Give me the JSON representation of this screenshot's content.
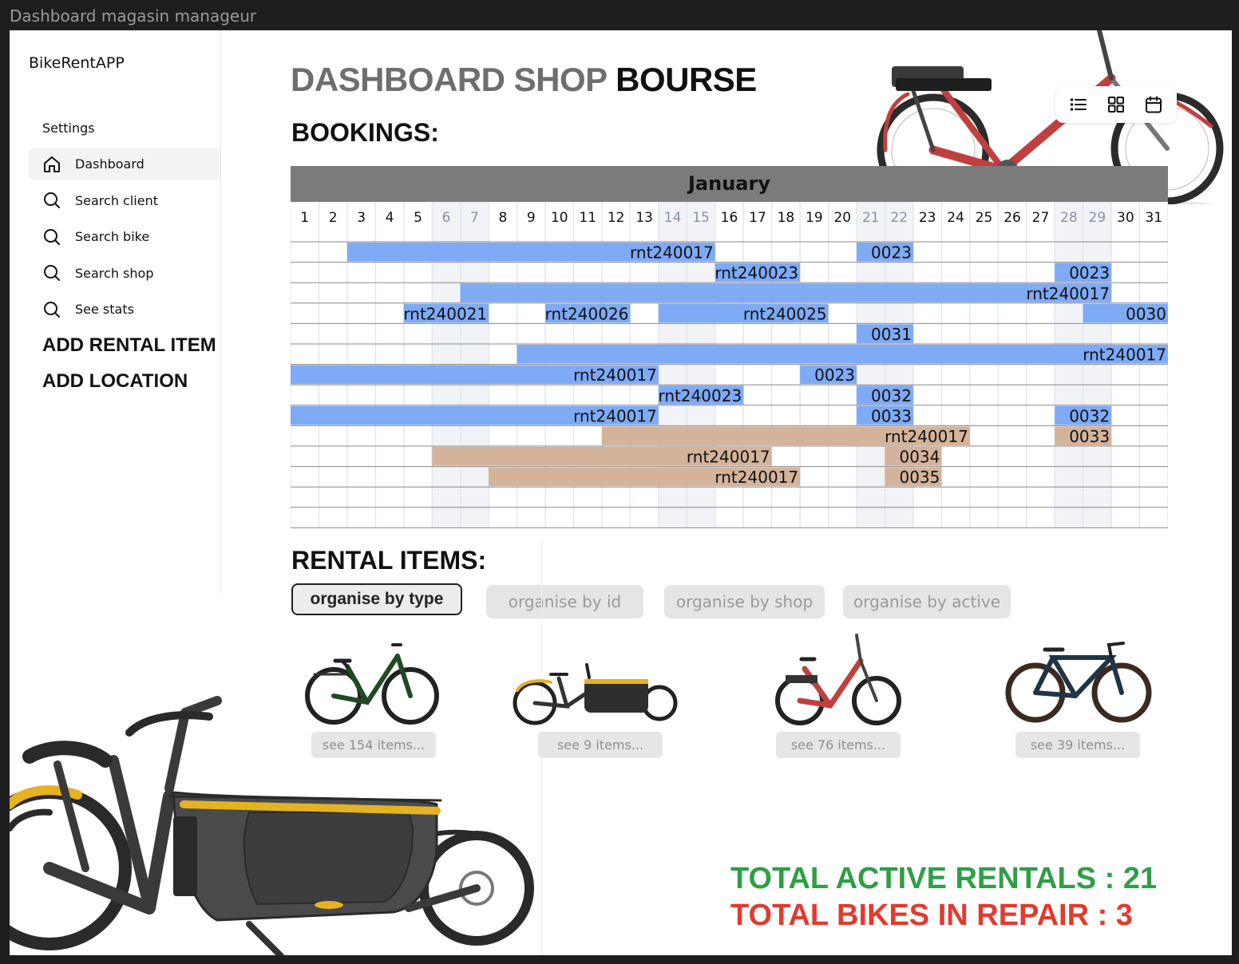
{
  "frame": {
    "title": "Dashboard magasin manageur"
  },
  "sidebar": {
    "brand": "BikeRentAPP",
    "settings_label": "Settings",
    "items": [
      {
        "label": "Dashboard",
        "icon": "home-icon",
        "active": true
      },
      {
        "label": "Search client",
        "icon": "search-icon"
      },
      {
        "label": "Search bike",
        "icon": "search-icon"
      },
      {
        "label": "Search shop",
        "icon": "search-icon"
      },
      {
        "label": "See stats",
        "icon": "search-icon"
      }
    ],
    "add_rental_item": "ADD RENTAL ITEM",
    "add_location": "ADD LOCATION"
  },
  "header": {
    "title_part1": "DASHBOARD SHOP",
    "title_part2": "BOURSE",
    "view_icons": [
      "list-icon",
      "grid-icon",
      "calendar-icon"
    ]
  },
  "bookings": {
    "title": "BOOKINGS:",
    "month": "January",
    "days": [
      "1",
      "2",
      "3",
      "4",
      "5",
      "6",
      "7",
      "8",
      "9",
      "10",
      "11",
      "12",
      "13",
      "14",
      "15",
      "16",
      "17",
      "18",
      "19",
      "20",
      "21",
      "22",
      "23",
      "24",
      "25",
      "26",
      "27",
      "28",
      "29",
      "30",
      "31"
    ],
    "weekend_days": [
      6,
      7,
      14,
      15,
      21,
      22,
      28,
      29
    ],
    "colors": {
      "blue": "#7eaaf6",
      "tan": "#d5b39b"
    },
    "bars": [
      {
        "row": 0,
        "start": 3,
        "end": 15,
        "label": "rnt240017",
        "color": "blue"
      },
      {
        "row": 0,
        "start": 21,
        "end": 22,
        "label": "0023",
        "color": "blue"
      },
      {
        "row": 1,
        "start": 16,
        "end": 18,
        "label": "rnt240023",
        "color": "blue"
      },
      {
        "row": 1,
        "start": 28,
        "end": 29,
        "label": "0023",
        "color": "blue"
      },
      {
        "row": 2,
        "start": 7,
        "end": 29,
        "label": "rnt240017",
        "color": "blue"
      },
      {
        "row": 3,
        "start": 5,
        "end": 7,
        "label": "rnt240021",
        "color": "blue"
      },
      {
        "row": 3,
        "start": 10,
        "end": 12,
        "label": "rnt240026",
        "color": "blue"
      },
      {
        "row": 3,
        "start": 14,
        "end": 19,
        "label": "rnt240025",
        "color": "blue"
      },
      {
        "row": 3,
        "start": 29,
        "end": 31,
        "label": "0030",
        "color": "blue"
      },
      {
        "row": 4,
        "start": 21,
        "end": 22,
        "label": "0031",
        "color": "blue"
      },
      {
        "row": 5,
        "start": 9,
        "end": 31,
        "label": "rnt240017",
        "color": "blue"
      },
      {
        "row": 6,
        "start": 1,
        "end": 13,
        "label": "rnt240017",
        "color": "blue"
      },
      {
        "row": 6,
        "start": 19,
        "end": 20,
        "label": "0023",
        "color": "blue"
      },
      {
        "row": 7,
        "start": 14,
        "end": 16,
        "label": "rnt240023",
        "color": "blue"
      },
      {
        "row": 7,
        "start": 21,
        "end": 22,
        "label": "0032",
        "color": "blue"
      },
      {
        "row": 8,
        "start": 1,
        "end": 13,
        "label": "rnt240017",
        "color": "blue"
      },
      {
        "row": 8,
        "start": 21,
        "end": 22,
        "label": "0033",
        "color": "blue"
      },
      {
        "row": 8,
        "start": 28,
        "end": 29,
        "label": "0032",
        "color": "blue"
      },
      {
        "row": 9,
        "start": 12,
        "end": 24,
        "label": "rnt240017",
        "color": "tan"
      },
      {
        "row": 9,
        "start": 28,
        "end": 29,
        "label": "0033",
        "color": "tan"
      },
      {
        "row": 10,
        "start": 6,
        "end": 17,
        "label": "rnt240017",
        "color": "tan"
      },
      {
        "row": 10,
        "start": 22,
        "end": 23,
        "label": "0034",
        "color": "tan"
      },
      {
        "row": 11,
        "start": 8,
        "end": 18,
        "label": "rnt240017",
        "color": "tan"
      },
      {
        "row": 11,
        "start": 22,
        "end": 23,
        "label": "0035",
        "color": "tan"
      }
    ]
  },
  "rental_items": {
    "title": "RENTAL ITEMS:",
    "filters": [
      {
        "label": "organise by type",
        "active": true
      },
      {
        "label": "organise by id"
      },
      {
        "label": "organise by shop"
      },
      {
        "label": "organise by active"
      }
    ],
    "items": [
      {
        "image": "green-city-bike",
        "button": "see 154 items..."
      },
      {
        "image": "cargo-bike",
        "button": "see 9 items..."
      },
      {
        "image": "red-folding-ebike",
        "button": "see 76 items..."
      },
      {
        "image": "gravel-bike",
        "button": "see 39 items..."
      }
    ]
  },
  "totals": {
    "active_rentals": "TOTAL ACTIVE RENTALS : 21",
    "bikes_in_repair": "TOTAL BIKES IN REPAIR : 3",
    "green": "#2e9f45",
    "red": "#e23a2f"
  }
}
